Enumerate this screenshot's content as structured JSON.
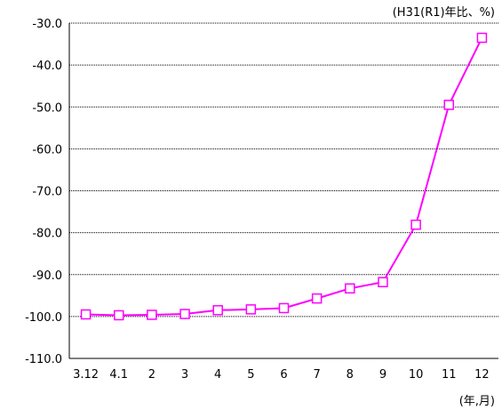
{
  "chart_data": {
    "type": "line",
    "categories": [
      "3.12",
      "4.1",
      "2",
      "3",
      "4",
      "5",
      "6",
      "7",
      "8",
      "9",
      "10",
      "11",
      "12"
    ],
    "series": [
      {
        "values": [
          -99.5,
          -99.7,
          -99.6,
          -99.4,
          -98.5,
          -98.3,
          -98.0,
          -95.7,
          -93.3,
          -91.8,
          -78.1,
          -49.5,
          -33.5
        ],
        "color": "#ff00ff",
        "marker": "square"
      }
    ],
    "ylim": [
      -110,
      -30
    ],
    "yticks": [
      -30,
      -40,
      -50,
      -60,
      -70,
      -80,
      -90,
      -100,
      -110
    ],
    "ytick_labels": [
      "-30.0",
      "-40.0",
      "-50.0",
      "-60.0",
      "-70.0",
      "-80.0",
      "-90.0",
      "-100.0",
      "-110.0"
    ],
    "unit_top": "(H31(R1)年比、%)",
    "unit_bottom": "(年,月)",
    "grid": "horizontal dotted",
    "legend": "none"
  }
}
